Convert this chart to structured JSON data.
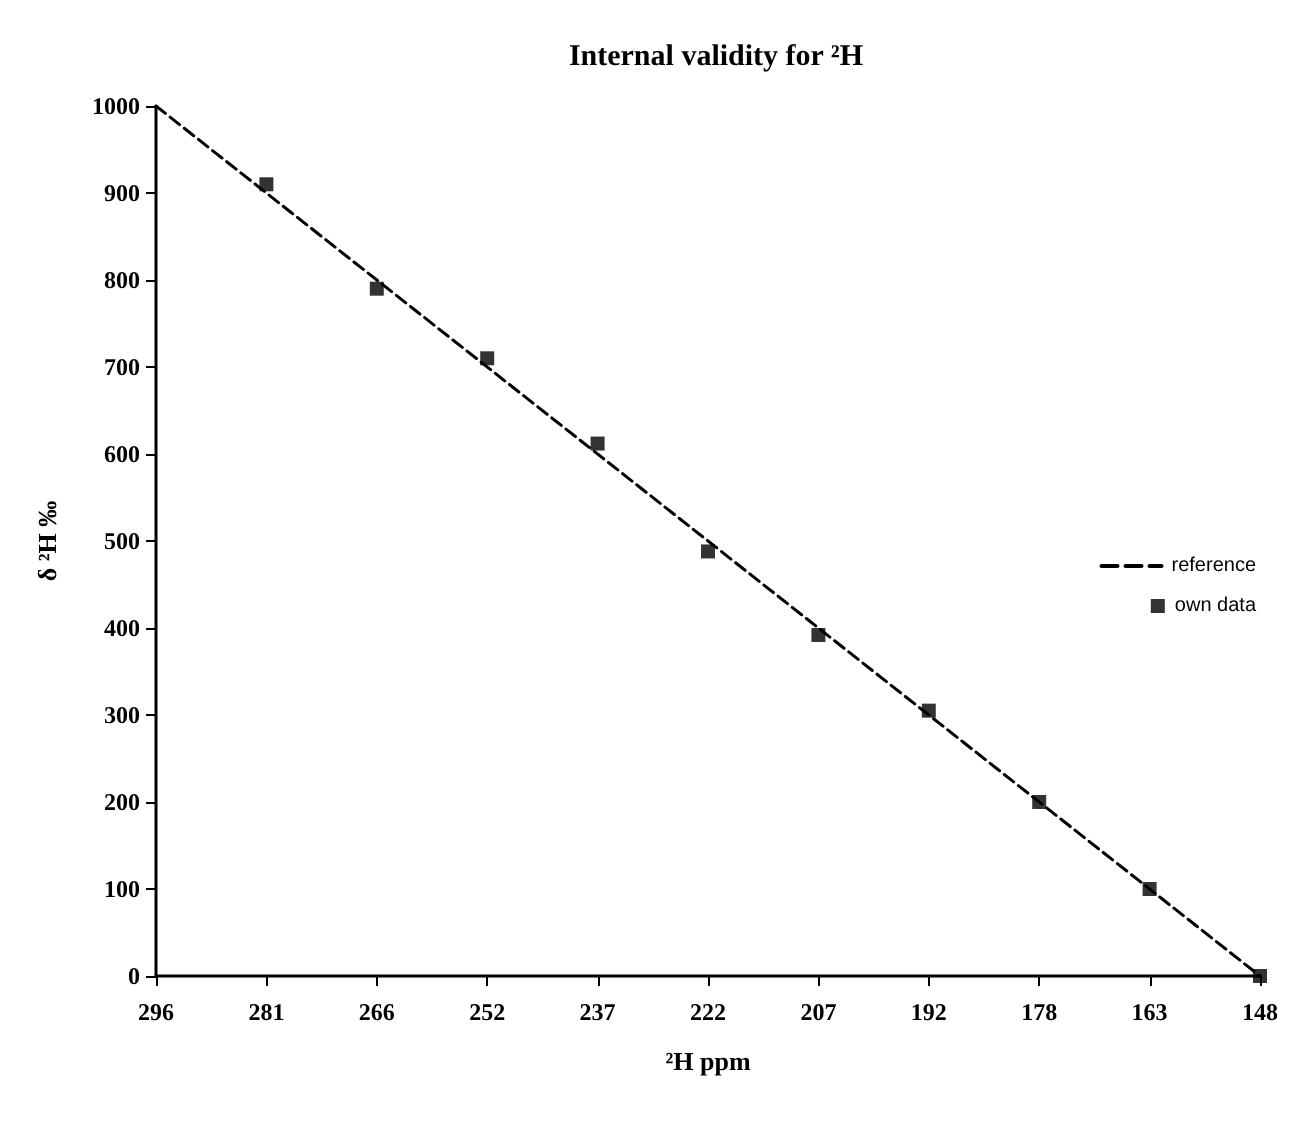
{
  "chart_data": {
    "type": "scatter",
    "title": "Internal validity for ²H",
    "xlabel": "²H ppm",
    "ylabel": "δ ²H ‰",
    "xlim": [
      296,
      148
    ],
    "xticks": [
      296,
      {
        "value": 281.2,
        "label": "281"
      },
      {
        "value": 266.4,
        "label": "266"
      },
      {
        "value": 251.6,
        "label": "252"
      },
      {
        "value": 236.8,
        "label": "237"
      },
      222,
      {
        "value": 207.2,
        "label": "207"
      },
      {
        "value": 192.4,
        "label": "192"
      },
      {
        "value": 177.6,
        "label": "178"
      },
      {
        "value": 162.8,
        "label": "163"
      },
      148
    ],
    "ylim": [
      0,
      1000
    ],
    "yticks": [
      0,
      100,
      200,
      300,
      400,
      500,
      600,
      700,
      800,
      900,
      1000
    ],
    "grid": false,
    "legend": "right",
    "series": [
      {
        "name": "reference",
        "type": "line",
        "color": "#000000",
        "line_style": "dashed",
        "marker": "none",
        "x": [
          296,
          148
        ],
        "values": [
          1000,
          0
        ]
      },
      {
        "name": "own data",
        "type": "scatter",
        "color": "#000000",
        "marker": "square",
        "x": [
          281.2,
          266.4,
          251.6,
          236.8,
          222,
          207.2,
          192.4,
          177.6,
          162.8,
          148
        ],
        "values": [
          910,
          790,
          710,
          612,
          488,
          392,
          305,
          200,
          100,
          0
        ]
      }
    ]
  }
}
